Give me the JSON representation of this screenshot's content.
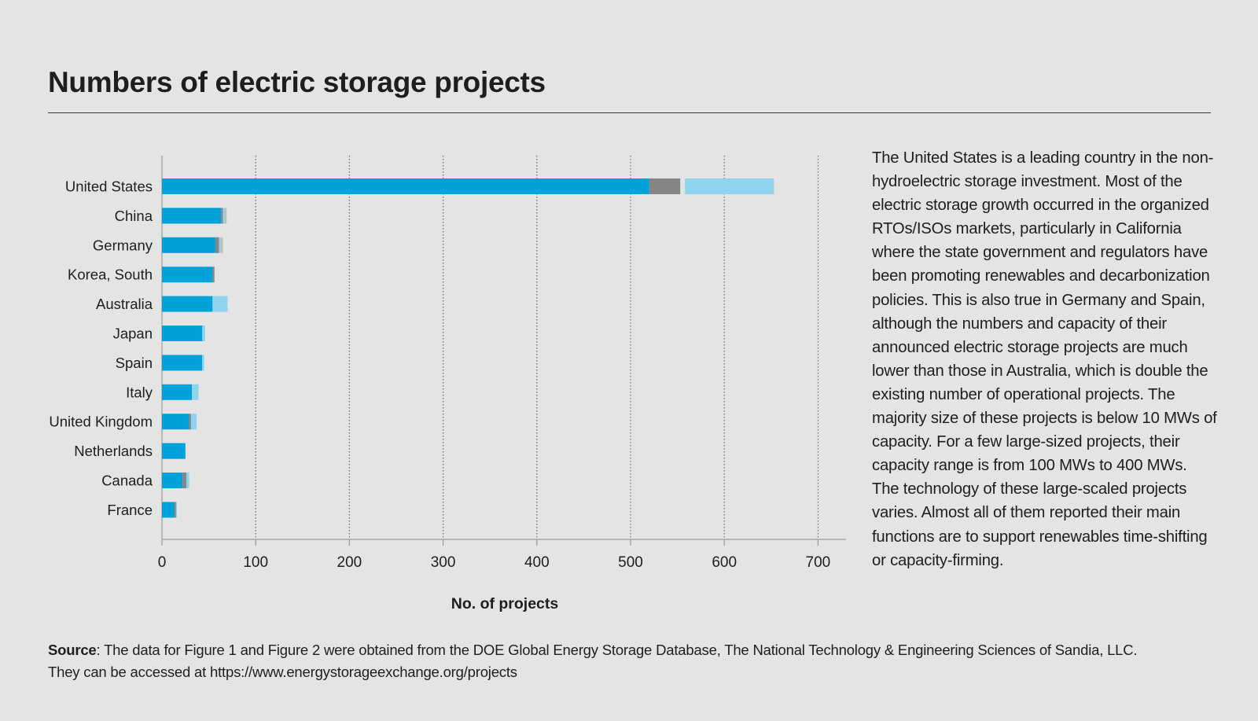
{
  "title": "Numbers of electric storage projects",
  "description": "The United States is a leading country in the non-hydroelectric storage investment. Most of the electric storage growth occurred in the organized RTOs/ISOs markets, particularly in California where the state government and regulators have been promoting renewables and decarbonization policies. This is also true in Germany and Spain, although the numbers and capacity of their announced electric storage projects are much lower than those in Australia, which is double the existing number of operational projects. The majority size of these projects is below 10 MWs of capacity. For a few large-sized projects, their capacity range is from 100 MWs to 400 MWs. The technology of these large-scaled projects varies. Almost all of them reported their main functions are to support renewables time-shifting or capacity-firming.",
  "source": {
    "label": "Source",
    "text": ": The data for Figure 1 and Figure 2 were obtained from the DOE Global Energy Storage Database, The National Technology & Engineering Sciences of Sandia, LLC.",
    "line2": "They can be accessed at https://www.energystorageexchange.org/projects"
  },
  "chart_data": {
    "type": "bar",
    "orientation": "horizontal",
    "stacked": true,
    "title": "Numbers of electric storage projects",
    "xlabel": "No. of projects",
    "ylabel": "",
    "xlim": [
      0,
      730
    ],
    "xticks": [
      0,
      100,
      200,
      300,
      400,
      500,
      600,
      700
    ],
    "grid": "vertical dotted",
    "legend": "none",
    "categories": [
      "United States",
      "China",
      "Germany",
      "Korea, South",
      "Australia",
      "Japan",
      "Spain",
      "Italy",
      "United Kingdom",
      "Netherlands",
      "Canada",
      "France"
    ],
    "series": [
      {
        "name": "segment-1",
        "color": "#00a2d9",
        "values": [
          520,
          63,
          57,
          54,
          54,
          43,
          43,
          32,
          29,
          25,
          22,
          13
        ]
      },
      {
        "name": "segment-2",
        "color": "#858585",
        "values": [
          33,
          2,
          4,
          2,
          0,
          0,
          0,
          0,
          2,
          0,
          4,
          2
        ]
      },
      {
        "name": "segment-3",
        "color": "#8fd4ef",
        "values": [
          100,
          2,
          2,
          0,
          16,
          3,
          2,
          7,
          6,
          0,
          3,
          1
        ]
      },
      {
        "name": "segment-4",
        "color": "#bdbdbd",
        "values": [
          0,
          2,
          2,
          0,
          0,
          0,
          0,
          0,
          0,
          0,
          0,
          0
        ]
      }
    ]
  }
}
